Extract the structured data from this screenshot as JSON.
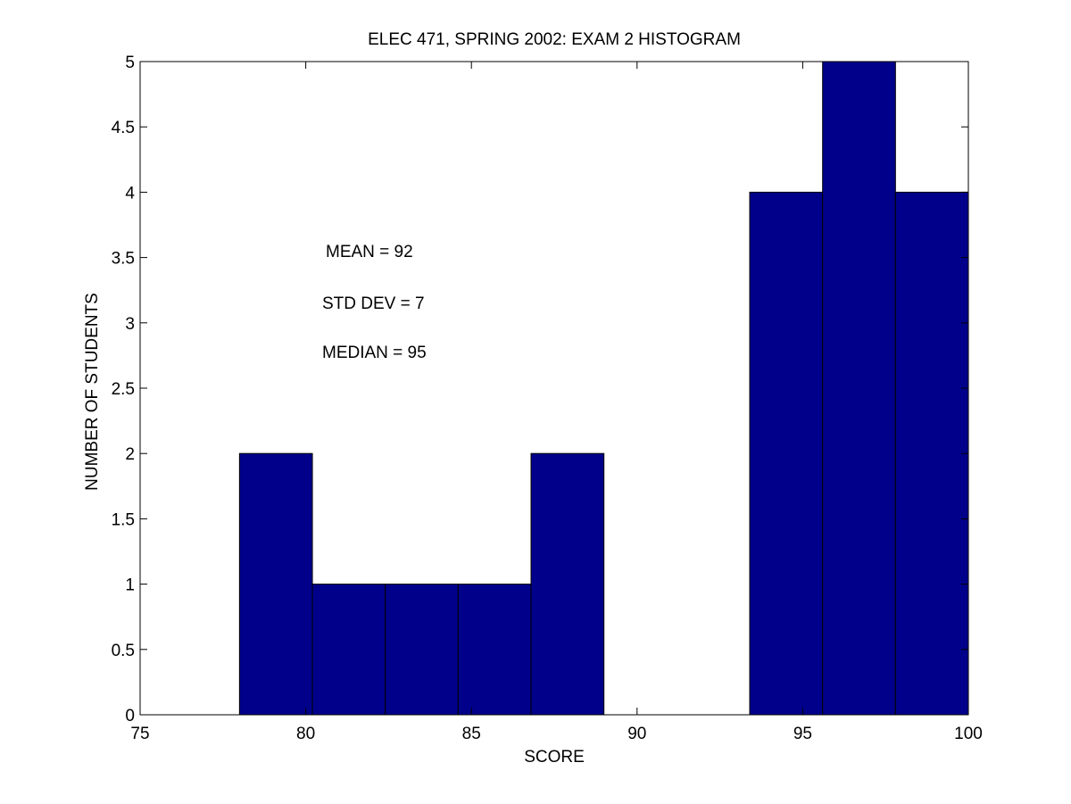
{
  "chart_data": {
    "type": "bar",
    "title": "ELEC 471, SPRING 2002:  EXAM 2 HISTOGRAM",
    "xlabel": "SCORE",
    "ylabel": "NUMBER OF STUDENTS",
    "xlim": [
      75,
      100
    ],
    "ylim": [
      0,
      5
    ],
    "xticks": [
      "75",
      "80",
      "85",
      "90",
      "95",
      "100"
    ],
    "yticks": [
      "0",
      "0.5",
      "1",
      "1.5",
      "2",
      "2.5",
      "3",
      "3.5",
      "4",
      "4.5",
      "5"
    ],
    "bins": [
      {
        "x0": 78.0,
        "x1": 80.2,
        "count": 2
      },
      {
        "x0": 80.2,
        "x1": 82.4,
        "count": 1
      },
      {
        "x0": 82.4,
        "x1": 84.6,
        "count": 1
      },
      {
        "x0": 84.6,
        "x1": 86.8,
        "count": 1
      },
      {
        "x0": 86.8,
        "x1": 89.0,
        "count": 2
      },
      {
        "x0": 89.0,
        "x1": 91.2,
        "count": 0
      },
      {
        "x0": 91.2,
        "x1": 93.4,
        "count": 0
      },
      {
        "x0": 93.4,
        "x1": 95.6,
        "count": 4
      },
      {
        "x0": 95.6,
        "x1": 97.8,
        "count": 5
      },
      {
        "x0": 97.8,
        "x1": 100.0,
        "count": 4
      }
    ],
    "bar_color": "#00008B",
    "annotations": {
      "mean": "MEAN = 92",
      "std": "STD DEV = 7",
      "median": "MEDIAN = 95"
    },
    "grid": false,
    "legend": "none"
  }
}
